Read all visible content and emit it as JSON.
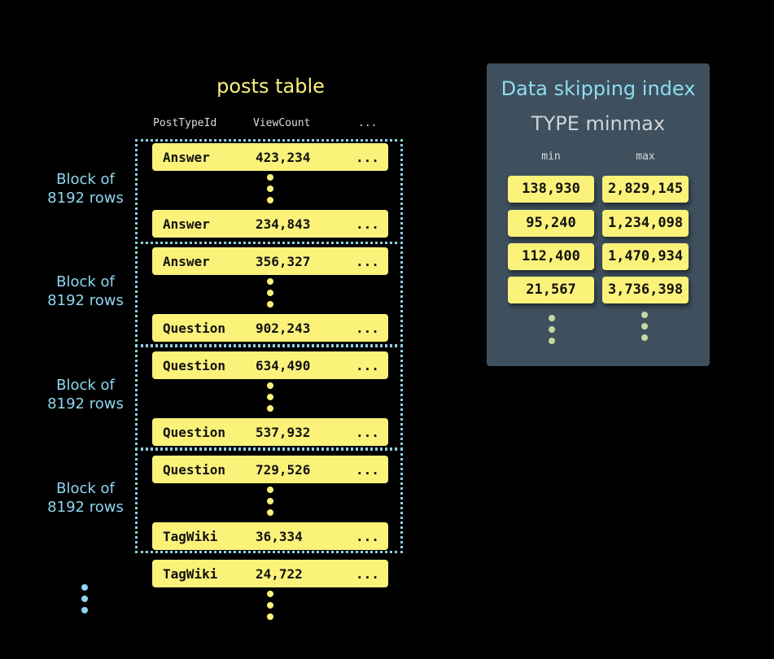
{
  "table": {
    "title": "posts table",
    "columns": [
      "PostTypeId",
      "ViewCount",
      "..."
    ],
    "block_label": "Block of 8192 rows",
    "block_label_lines": [
      "Block of",
      "8192 rows"
    ],
    "rows": [
      [
        "Answer",
        "423,234",
        "..."
      ],
      [
        "Answer",
        "234,843",
        "..."
      ],
      [
        "Answer",
        "356,327",
        "..."
      ],
      [
        "Question",
        "902,243",
        "..."
      ],
      [
        "Question",
        "634,490",
        "..."
      ],
      [
        "Question",
        "537,932",
        "..."
      ],
      [
        "Question",
        "729,526",
        "..."
      ],
      [
        "TagWiki",
        "36,334",
        "..."
      ],
      [
        "TagWiki",
        "24,722",
        "..."
      ]
    ]
  },
  "index": {
    "title": "Data skipping index",
    "subtitle": "TYPE minmax",
    "headers": [
      "min",
      "max"
    ],
    "rows": [
      [
        "138,930",
        "2,829,145"
      ],
      [
        "95,240",
        "1,234,098"
      ],
      [
        "112,400",
        "1,470,934"
      ],
      [
        "21,567",
        "3,736,398"
      ]
    ]
  },
  "colors": {
    "row": "#fbf27a",
    "block_border": "#8fd0e0",
    "panel": "#3e505e",
    "index_title": "#8fdcef"
  }
}
